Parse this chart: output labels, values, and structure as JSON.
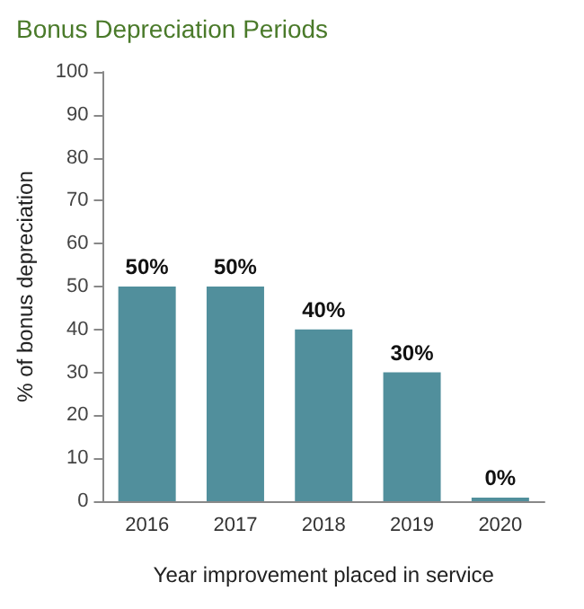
{
  "chart_data": {
    "type": "bar",
    "title": "Bonus Depreciation Periods",
    "xlabel": "Year improvement placed in service",
    "ylabel": "% of bonus depreciation",
    "categories": [
      "2016",
      "2017",
      "2018",
      "2019",
      "2020"
    ],
    "values": [
      50,
      50,
      40,
      30,
      0
    ],
    "value_labels": [
      "50%",
      "50%",
      "40%",
      "30%",
      "0%"
    ],
    "color": "#518f9c",
    "ylim": [
      0,
      100
    ],
    "yticks": [
      0,
      10,
      20,
      30,
      40,
      50,
      60,
      70,
      80,
      90,
      100
    ],
    "grid": false
  }
}
